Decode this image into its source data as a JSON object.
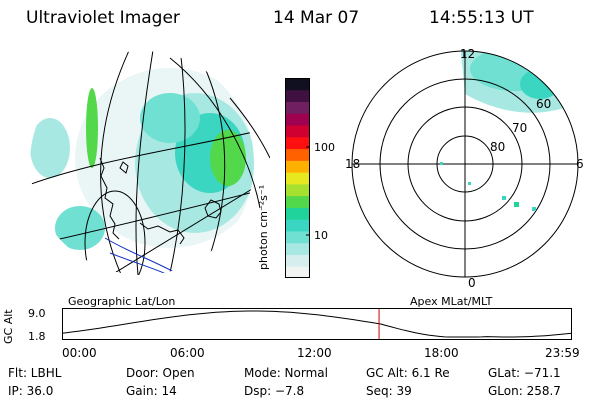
{
  "header": {
    "instrument": "Ultraviolet Imager",
    "date": "14 Mar 07",
    "time": "14:55:13 UT"
  },
  "colorbar": {
    "unit_label": "photon cm⁻²s⁻¹",
    "ticks": [
      "100",
      "10"
    ],
    "colors": [
      "#f2f4f4",
      "#d6eeee",
      "#a8e8e2",
      "#6fe0d2",
      "#3ad6c1",
      "#1fd39a",
      "#52d84a",
      "#a8e030",
      "#e8e820",
      "#ffb000",
      "#ff6000",
      "#ff1010",
      "#d00030",
      "#a00050",
      "#702060",
      "#401040",
      "#101020"
    ]
  },
  "geographic_panel": {
    "label": "Geographic Lat/Lon"
  },
  "polar_panel": {
    "label": "Apex MLat/MLT",
    "mlt_labels": {
      "top": "12",
      "left": "18",
      "right": "6",
      "bottom": "0"
    },
    "lat_labels": [
      "60",
      "70",
      "80"
    ]
  },
  "altitude_plot": {
    "ylabel": "GC Alt",
    "yticks": [
      "9.0",
      "1.8"
    ],
    "xticks": [
      "00:00",
      "06:00",
      "12:00",
      "18:00",
      "23:59"
    ],
    "current_marker_hours": 14.92
  },
  "footer": {
    "flt": "Flt: LBHL",
    "ip": "IP: 36.0",
    "door": "Door: Open",
    "gain": "Gain: 14",
    "mode": "Mode: Normal",
    "dsp": "Dsp:  −7.8",
    "gc_alt": "GC Alt: 6.1 Re",
    "seq": "Seq: 39",
    "glat": "GLat: −71.1",
    "glon": "GLon: 258.7"
  },
  "style": {
    "background": "#ffffff",
    "ink": "#000000",
    "marker_color": "#cc0000",
    "coast_blue": "#1030c0"
  }
}
